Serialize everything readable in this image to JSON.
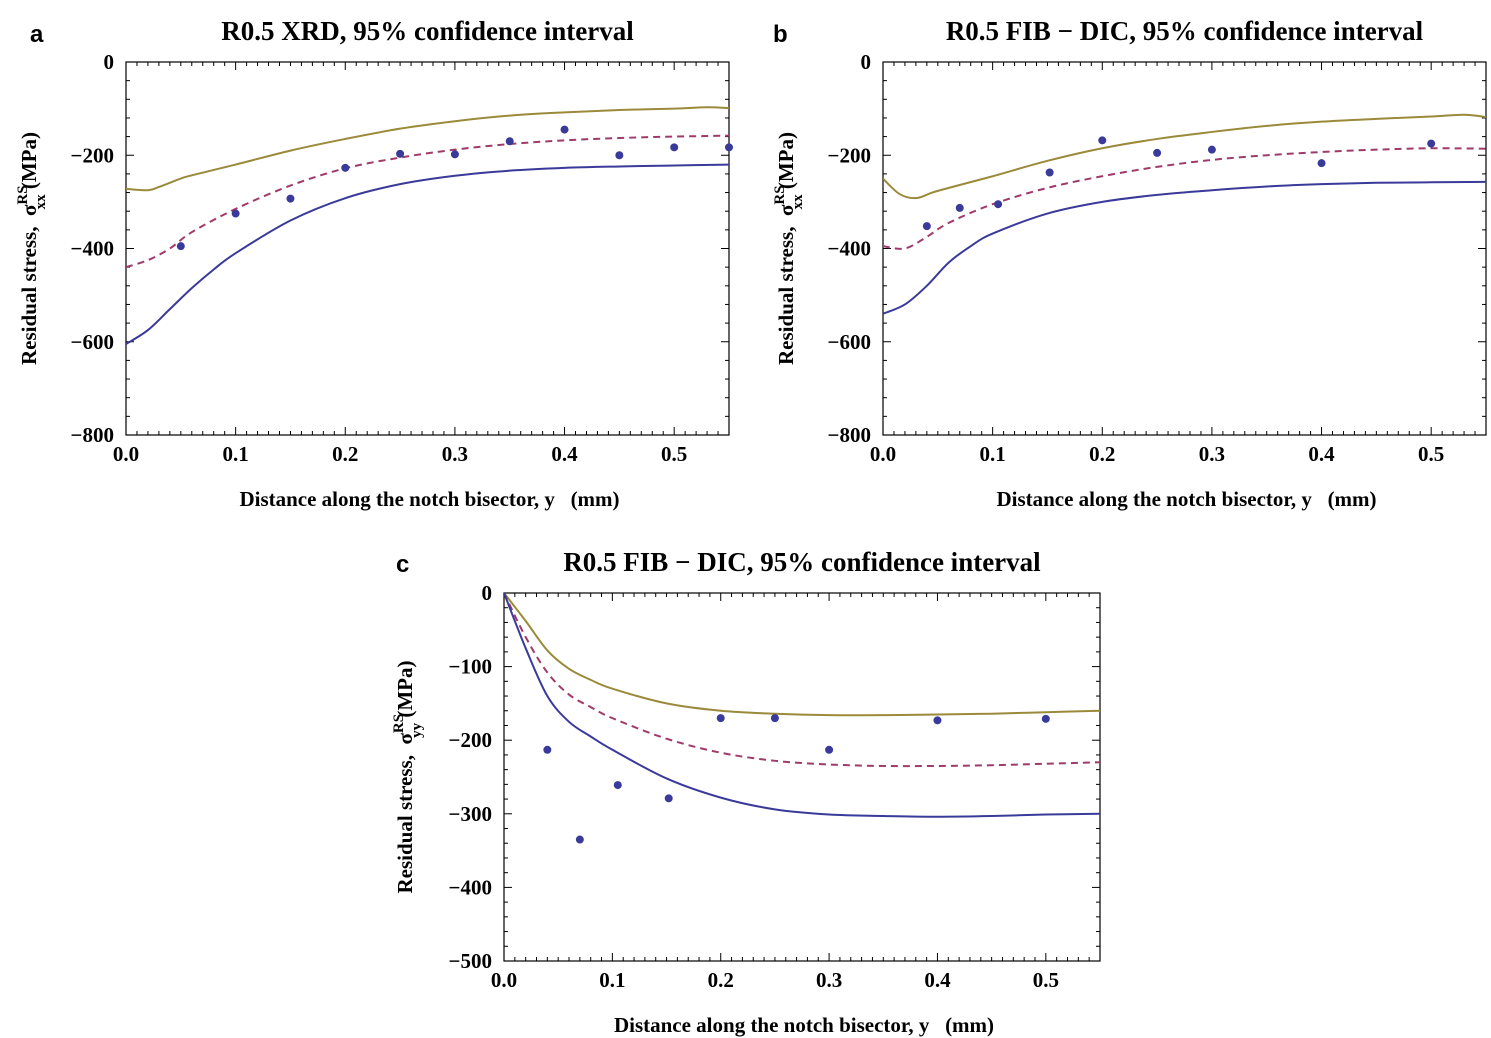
{
  "chart_data": [
    {
      "panel_label": "a",
      "type": "line",
      "title": "R0.5 XRD, 95% confidence interval",
      "xlabel": "Distance along the notch bisector, y   (mm)",
      "ylabel": "Residual stress,  σ",
      "ylabel_sup": "RS",
      "ylabel_sub": "xx",
      "ylabel_unit": " (MPa)",
      "xlim": [
        0,
        0.55
      ],
      "ylim": [
        -800,
        0
      ],
      "xticks": [
        0,
        0.1,
        0.2,
        0.3,
        0.4,
        0.5
      ],
      "xtick_labels": [
        "0.0",
        "0.1",
        "0.2",
        "0.3",
        "0.4",
        "0.5"
      ],
      "yticks": [
        0,
        -200,
        -400,
        -600,
        -800
      ],
      "ytick_labels": [
        "0",
        "−200",
        "−400",
        "−600",
        "−800"
      ],
      "series": [
        {
          "kind": "line",
          "style": "solid",
          "color": "#9a8a3a",
          "x": [
            0,
            0.02,
            0.03,
            0.05,
            0.06,
            0.1,
            0.15,
            0.2,
            0.25,
            0.3,
            0.35,
            0.4,
            0.45,
            0.5,
            0.53,
            0.55
          ],
          "y": [
            -272,
            -275,
            -268,
            -250,
            -243,
            -220,
            -190,
            -165,
            -143,
            -127,
            -115,
            -108,
            -103,
            -100,
            -97,
            -99
          ]
        },
        {
          "kind": "line",
          "style": "dashed",
          "color": "#a03a6a",
          "x": [
            0,
            0.02,
            0.04,
            0.06,
            0.1,
            0.15,
            0.2,
            0.25,
            0.3,
            0.35,
            0.4,
            0.45,
            0.5,
            0.55
          ],
          "y": [
            -440,
            -425,
            -400,
            -365,
            -315,
            -265,
            -228,
            -205,
            -188,
            -176,
            -168,
            -163,
            -160,
            -158
          ]
        },
        {
          "kind": "line",
          "style": "solid",
          "color": "#3a3a9a",
          "x": [
            0,
            0.02,
            0.04,
            0.06,
            0.08,
            0.1,
            0.15,
            0.2,
            0.25,
            0.3,
            0.35,
            0.4,
            0.45,
            0.5,
            0.55
          ],
          "y": [
            -605,
            -575,
            -530,
            -485,
            -445,
            -410,
            -340,
            -292,
            -262,
            -244,
            -233,
            -227,
            -224,
            -222,
            -220
          ]
        },
        {
          "kind": "scatter",
          "color": "#3a3a9a",
          "x": [
            0.05,
            0.1,
            0.15,
            0.2,
            0.25,
            0.3,
            0.35,
            0.4,
            0.45,
            0.5,
            0.55
          ],
          "y": [
            -395,
            -325,
            -293,
            -227,
            -197,
            -198,
            -170,
            -145,
            -200,
            -183,
            -183
          ]
        }
      ]
    },
    {
      "panel_label": "b",
      "type": "line",
      "title": "R0.5 FIB − DIC, 95% confidence interval",
      "xlabel": "Distance along the notch bisector, y   (mm)",
      "ylabel": "Residual stress,  σ",
      "ylabel_sup": "RS",
      "ylabel_sub": "xx",
      "ylabel_unit": " (MPa)",
      "xlim": [
        0,
        0.55
      ],
      "ylim": [
        -800,
        0
      ],
      "xticks": [
        0,
        0.1,
        0.2,
        0.3,
        0.4,
        0.5
      ],
      "xtick_labels": [
        "0.0",
        "0.1",
        "0.2",
        "0.3",
        "0.4",
        "0.5"
      ],
      "yticks": [
        0,
        -200,
        -400,
        -600,
        -800
      ],
      "ytick_labels": [
        "0",
        "−200",
        "−400",
        "−600",
        "−800"
      ],
      "series": [
        {
          "kind": "line",
          "style": "solid",
          "color": "#9a8a3a",
          "x": [
            0,
            0.015,
            0.03,
            0.045,
            0.06,
            0.1,
            0.15,
            0.2,
            0.25,
            0.3,
            0.35,
            0.4,
            0.45,
            0.5,
            0.53,
            0.55
          ],
          "y": [
            -250,
            -283,
            -292,
            -280,
            -270,
            -245,
            -212,
            -185,
            -165,
            -150,
            -137,
            -128,
            -122,
            -117,
            -113,
            -118
          ]
        },
        {
          "kind": "line",
          "style": "dashed",
          "color": "#a03a6a",
          "x": [
            0,
            0.02,
            0.04,
            0.06,
            0.1,
            0.15,
            0.2,
            0.25,
            0.3,
            0.35,
            0.4,
            0.45,
            0.5,
            0.55
          ],
          "y": [
            -395,
            -400,
            -375,
            -345,
            -305,
            -270,
            -245,
            -225,
            -210,
            -200,
            -193,
            -188,
            -185,
            -186
          ]
        },
        {
          "kind": "line",
          "style": "solid",
          "color": "#3a3a9a",
          "x": [
            0,
            0.02,
            0.04,
            0.06,
            0.08,
            0.1,
            0.15,
            0.2,
            0.25,
            0.3,
            0.35,
            0.4,
            0.45,
            0.5,
            0.55
          ],
          "y": [
            -540,
            -520,
            -480,
            -430,
            -395,
            -368,
            -325,
            -300,
            -285,
            -275,
            -267,
            -262,
            -259,
            -258,
            -257
          ]
        },
        {
          "kind": "scatter",
          "color": "#3a3a9a",
          "x": [
            0.04,
            0.07,
            0.105,
            0.152,
            0.2,
            0.25,
            0.3,
            0.4,
            0.5
          ],
          "y": [
            -352,
            -313,
            -305,
            -237,
            -168,
            -195,
            -188,
            -217,
            -175
          ]
        }
      ]
    },
    {
      "panel_label": "c",
      "type": "line",
      "title": "R0.5 FIB − DIC, 95% confidence interval",
      "xlabel": "Distance along the notch bisector, y   (mm)",
      "ylabel": "Residual stress,  σ",
      "ylabel_sup": "RS",
      "ylabel_sub": "yy",
      "ylabel_unit": " (MPa)",
      "xlim": [
        0,
        0.55
      ],
      "ylim": [
        -500,
        0
      ],
      "xticks": [
        0,
        0.1,
        0.2,
        0.3,
        0.4,
        0.5
      ],
      "xtick_labels": [
        "0.0",
        "0.1",
        "0.2",
        "0.3",
        "0.4",
        "0.5"
      ],
      "yticks": [
        0,
        -100,
        -200,
        -300,
        -400,
        -500
      ],
      "ytick_labels": [
        "0",
        "−100",
        "−200",
        "−300",
        "−400",
        "−500"
      ],
      "series": [
        {
          "kind": "line",
          "style": "solid",
          "color": "#9a8a3a",
          "x": [
            0,
            0.02,
            0.04,
            0.06,
            0.08,
            0.1,
            0.15,
            0.2,
            0.25,
            0.3,
            0.35,
            0.4,
            0.45,
            0.5,
            0.55
          ],
          "y": [
            0,
            -38,
            -78,
            -103,
            -118,
            -130,
            -150,
            -160,
            -164,
            -166,
            -166,
            -165,
            -164,
            -162,
            -160
          ]
        },
        {
          "kind": "line",
          "style": "dashed",
          "color": "#a03a6a",
          "x": [
            0,
            0.02,
            0.04,
            0.06,
            0.08,
            0.1,
            0.15,
            0.2,
            0.25,
            0.3,
            0.35,
            0.4,
            0.45,
            0.5,
            0.55
          ],
          "y": [
            0,
            -60,
            -108,
            -138,
            -155,
            -170,
            -198,
            -217,
            -228,
            -233,
            -235,
            -235,
            -234,
            -232,
            -230
          ]
        },
        {
          "kind": "line",
          "style": "solid",
          "color": "#3a3a9a",
          "x": [
            0,
            0.02,
            0.04,
            0.06,
            0.08,
            0.1,
            0.15,
            0.2,
            0.25,
            0.3,
            0.35,
            0.4,
            0.45,
            0.5,
            0.55
          ],
          "y": [
            0,
            -75,
            -140,
            -175,
            -195,
            -213,
            -252,
            -278,
            -294,
            -301,
            -303,
            -304,
            -303,
            -301,
            -300
          ]
        },
        {
          "kind": "scatter",
          "color": "#3a3a9a",
          "x": [
            0.04,
            0.07,
            0.105,
            0.152,
            0.2,
            0.25,
            0.3,
            0.4,
            0.5
          ],
          "y": [
            -213,
            -335,
            -261,
            -279,
            -170,
            -170,
            -213,
            -173,
            -171
          ]
        }
      ]
    }
  ]
}
